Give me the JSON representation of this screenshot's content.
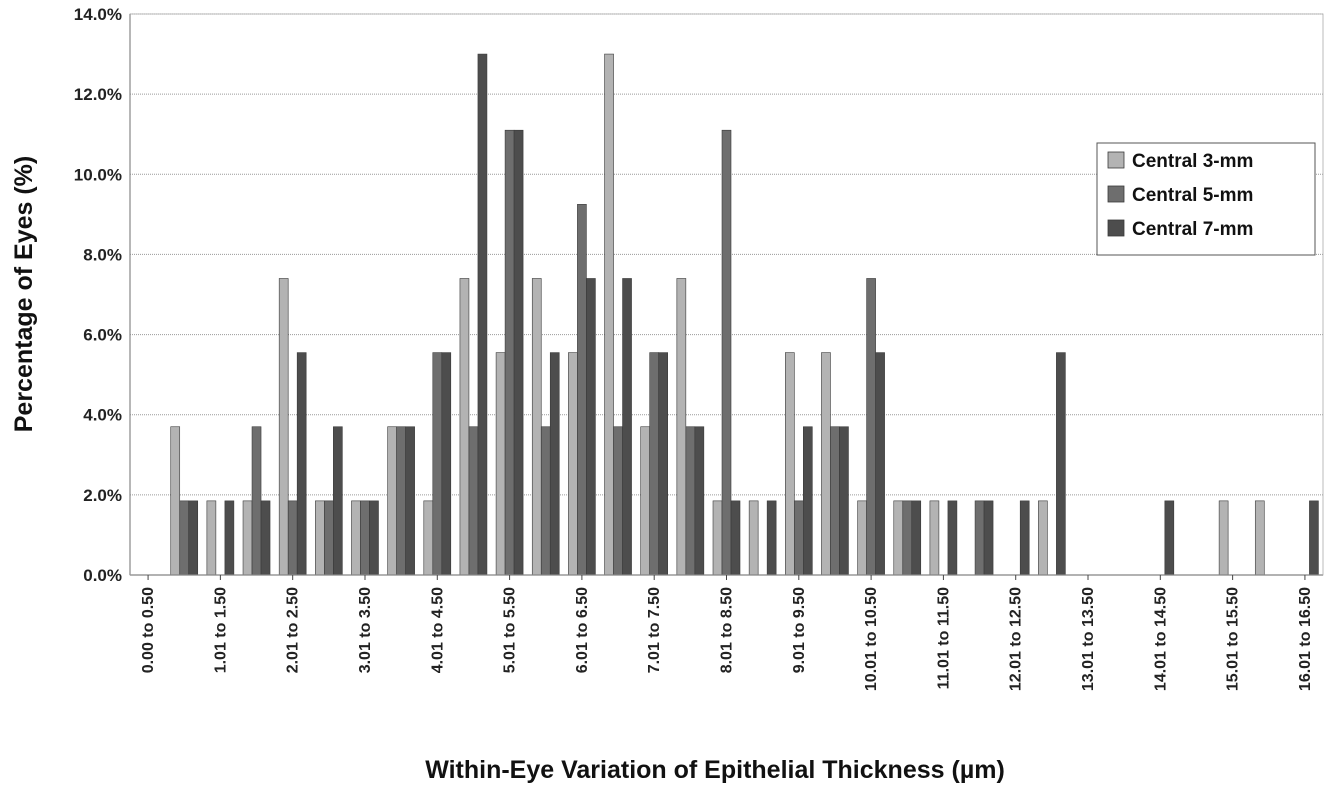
{
  "chart_data": {
    "type": "bar",
    "title": "",
    "xlabel": "Within-Eye Variation of Epithelial Thickness (µm)",
    "ylabel": "Percentage of Eyes (%)",
    "ylim": [
      0,
      14
    ],
    "y_ticks": [
      "0.0%",
      "2.0%",
      "4.0%",
      "6.0%",
      "8.0%",
      "10.0%",
      "12.0%",
      "14.0%"
    ],
    "grid": "horizontal",
    "legend_position": "right",
    "categories": [
      "0.00 to 0.50",
      "0.51 to 1.00",
      "1.01 to 1.50",
      "1.51 to 2.00",
      "2.01 to 2.50",
      "2.51 to 3.00",
      "3.01 to 3.50",
      "3.51 to 4.00",
      "4.01 to 4.50",
      "4.51 to 5.00",
      "5.01 to 5.50",
      "5.51 to 6.00",
      "6.01 to 6.50",
      "6.51 to 7.00",
      "7.01 to 7.50",
      "7.51 to 8.00",
      "8.01 to 8.50",
      "8.51 to 9.00",
      "9.01 to 9.50",
      "9.51 to 10.00",
      "10.01 to 10.50",
      "10.51 to 11.00",
      "11.01 to 11.50",
      "11.51 to 12.00",
      "12.01 to 12.50",
      "12.51 to 13.00",
      "13.01 to 13.50",
      "13.51 to 14.00",
      "14.01 to 14.50",
      "14.51 to 15.00",
      "15.01 to 15.50",
      "15.51 to 16.00",
      "16.01 to 16.50"
    ],
    "visible_category_labels": [
      "0.00 to 0.50",
      "1.01 to 1.50",
      "2.01 to 2.50",
      "3.01 to 3.50",
      "4.01 to 4.50",
      "5.01 to 5.50",
      "6.01 to 6.50",
      "7.01 to 7.50",
      "8.01 to 8.50",
      "9.01 to 9.50",
      "10.01 to 10.50",
      "11.01 to 11.50",
      "12.01 to 12.50",
      "13.01 to 13.50",
      "14.01 to 14.50",
      "15.01 to 15.50",
      "16.01 to 16.50"
    ],
    "series": [
      {
        "name": "Central 3-mm",
        "color": "#b3b3b3",
        "values": [
          0,
          3.7,
          1.85,
          1.85,
          7.4,
          1.85,
          1.85,
          3.7,
          1.85,
          7.4,
          5.55,
          7.4,
          5.55,
          13.0,
          3.7,
          7.4,
          1.85,
          1.85,
          5.55,
          5.55,
          1.85,
          1.85,
          1.85,
          0,
          0,
          1.85,
          0,
          0,
          0,
          0,
          1.85,
          1.85,
          0
        ]
      },
      {
        "name": "Central 5-mm",
        "color": "#6e6e6e",
        "values": [
          0,
          1.85,
          0,
          3.7,
          1.85,
          1.85,
          1.85,
          3.7,
          5.55,
          3.7,
          11.1,
          3.7,
          9.25,
          3.7,
          5.55,
          3.7,
          11.1,
          0,
          1.85,
          3.7,
          7.4,
          1.85,
          0,
          1.85,
          0,
          0,
          0,
          0,
          0,
          0,
          0,
          0,
          0
        ]
      },
      {
        "name": "Central 7-mm",
        "color": "#4d4d4d",
        "values": [
          0,
          1.85,
          1.85,
          1.85,
          5.55,
          3.7,
          1.85,
          3.7,
          5.55,
          13.0,
          11.1,
          5.55,
          7.4,
          7.4,
          5.55,
          3.7,
          1.85,
          1.85,
          3.7,
          3.7,
          5.55,
          1.85,
          1.85,
          1.85,
          1.85,
          5.55,
          0,
          0,
          1.85,
          0,
          0,
          0,
          1.85
        ]
      }
    ]
  }
}
